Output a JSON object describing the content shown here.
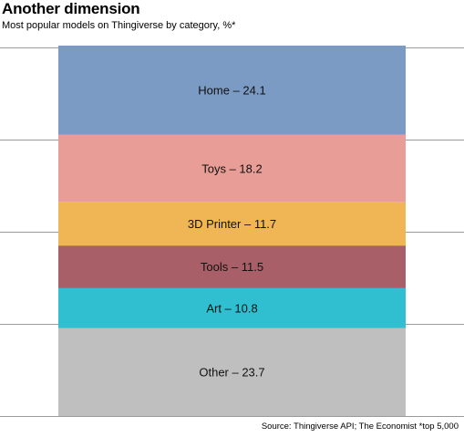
{
  "header": {
    "title": "Another dimension",
    "subtitle": "Most popular models on Thingiverse by category, %*"
  },
  "footer": {
    "source": "Source: Thingiverse API; The Economist *top 5,000"
  },
  "chart_data": {
    "type": "bar",
    "stacked": true,
    "orientation": "vertical",
    "title": "Another dimension",
    "subtitle": "Most popular models on Thingiverse by category, %*",
    "ylim": [
      0,
      100
    ],
    "grid": true,
    "segments": [
      {
        "label": "Home – 24.1",
        "category": "Home",
        "value": 24.1,
        "color": "#7b9bc4"
      },
      {
        "label": "Toys – 18.2",
        "category": "Toys",
        "value": 18.2,
        "color": "#e89e96"
      },
      {
        "label": "3D Printer – 11.7",
        "category": "3D Printer",
        "value": 11.7,
        "color": "#f0b554"
      },
      {
        "label": "Tools – 11.5",
        "category": "Tools",
        "value": 11.5,
        "color": "#a85f67"
      },
      {
        "label": "Art – 10.8",
        "category": "Art",
        "value": 10.8,
        "color": "#2fbfd1"
      },
      {
        "label": "Other – 23.7",
        "category": "Other",
        "value": 23.7,
        "color": "#bfbfbf"
      }
    ]
  }
}
